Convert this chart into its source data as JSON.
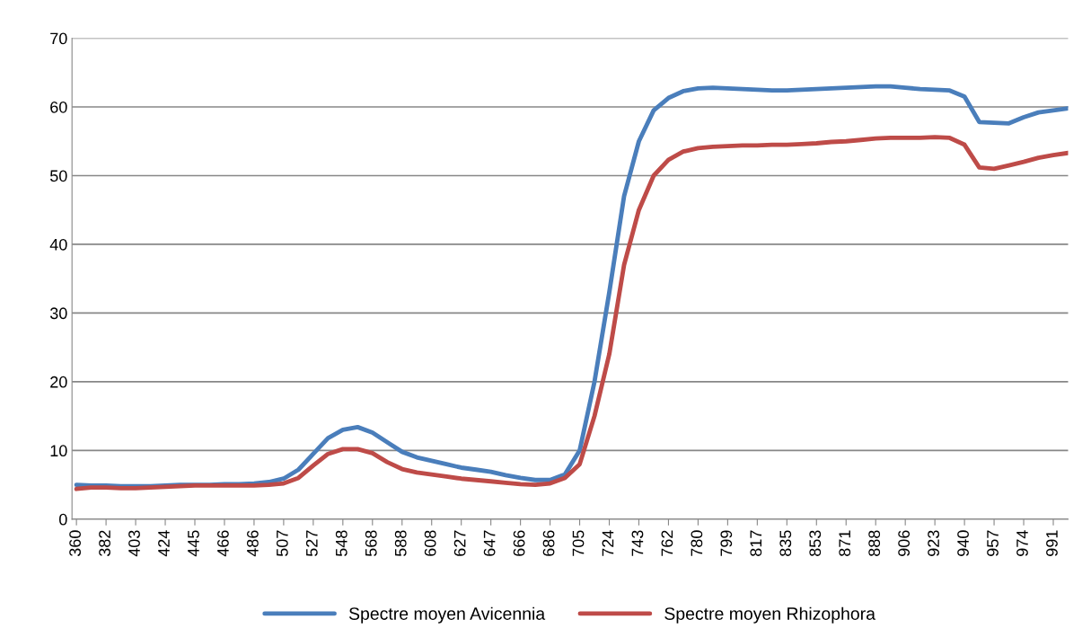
{
  "chart_data": {
    "type": "line",
    "categories": [
      "360",
      null,
      "382",
      null,
      "403",
      null,
      "424",
      null,
      "445",
      null,
      "466",
      null,
      "486",
      null,
      "507",
      null,
      "527",
      null,
      "548",
      null,
      "568",
      null,
      "588",
      null,
      "608",
      null,
      "627",
      null,
      "647",
      null,
      "666",
      null,
      "686",
      null,
      "705",
      null,
      "724",
      null,
      "743",
      null,
      "762",
      null,
      "780",
      null,
      "799",
      null,
      "817",
      null,
      "835",
      null,
      "853",
      null,
      "871",
      null,
      "888",
      null,
      "906",
      null,
      "923",
      null,
      "940",
      null,
      "957",
      null,
      "974",
      null,
      "991",
      null
    ],
    "series": [
      {
        "name": "Spectre moyen Avicennia",
        "color": "#4a7ebb",
        "values": [
          5.0,
          4.9,
          4.9,
          4.8,
          4.8,
          4.8,
          4.9,
          5.0,
          5.0,
          5.0,
          5.1,
          5.1,
          5.2,
          5.4,
          5.9,
          7.2,
          9.5,
          11.8,
          13.0,
          13.4,
          12.6,
          11.2,
          9.8,
          9.0,
          8.5,
          8.0,
          7.5,
          7.2,
          6.9,
          6.4,
          6.0,
          5.7,
          5.7,
          6.5,
          10.0,
          20.0,
          33.0,
          47.0,
          55.0,
          59.5,
          61.3,
          62.3,
          62.7,
          62.8,
          62.7,
          62.6,
          62.5,
          62.4,
          62.4,
          62.5,
          62.6,
          62.7,
          62.8,
          62.9,
          63.0,
          63.0,
          62.8,
          62.6,
          62.5,
          62.4,
          61.5,
          57.8,
          57.7,
          57.6,
          58.5,
          59.2,
          59.5,
          59.8
        ]
      },
      {
        "name": "Spectre moyen Rhizophora",
        "color": "#be4b48",
        "values": [
          4.4,
          4.6,
          4.6,
          4.5,
          4.5,
          4.6,
          4.7,
          4.8,
          4.9,
          4.9,
          4.9,
          4.9,
          4.9,
          5.0,
          5.2,
          6.0,
          7.8,
          9.5,
          10.2,
          10.2,
          9.6,
          8.3,
          7.3,
          6.8,
          6.5,
          6.2,
          5.9,
          5.7,
          5.5,
          5.3,
          5.1,
          5.0,
          5.2,
          6.0,
          8.0,
          15.0,
          24.0,
          37.0,
          45.0,
          50.0,
          52.3,
          53.5,
          54.0,
          54.2,
          54.3,
          54.4,
          54.4,
          54.5,
          54.5,
          54.6,
          54.7,
          54.9,
          55.0,
          55.2,
          55.4,
          55.5,
          55.5,
          55.5,
          55.6,
          55.5,
          54.5,
          51.2,
          51.0,
          51.5,
          52.0,
          52.6,
          53.0,
          53.3
        ]
      }
    ],
    "ylim": [
      0,
      70
    ],
    "yticks": [
      0,
      10,
      20,
      30,
      40,
      50,
      60,
      70
    ],
    "grid": "y",
    "legend": "bottom",
    "marker": "none",
    "line_style": "solid"
  }
}
